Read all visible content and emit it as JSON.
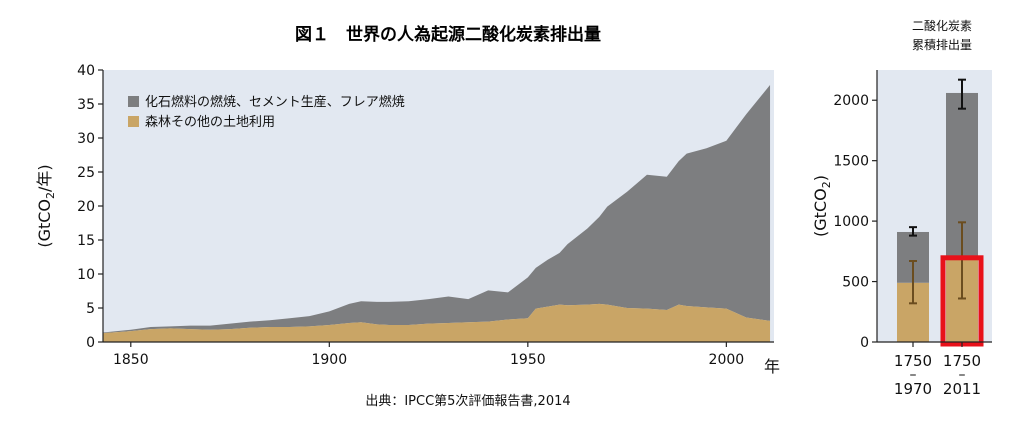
{
  "colors": {
    "fossil": "#7d7e80",
    "land": "#c9a566",
    "plot_bg": "#e2e8f1",
    "highlight": "#e8111a",
    "error_black": "#111111",
    "error_brown": "#6b4d1f"
  },
  "footer": {
    "source": "出典：IPCC第5次評価報告書,2014"
  },
  "chart_data": [
    {
      "type": "area",
      "stacked": true,
      "title": "図１　世界の人為起源二酸化炭素排出量",
      "ylabel": "(GtCO2/年)",
      "xlabel": "年",
      "xlim": [
        1843,
        2012
      ],
      "ylim": [
        0,
        40
      ],
      "xticks": [
        1850,
        1900,
        1950,
        2000
      ],
      "yticks": [
        0,
        5,
        10,
        15,
        20,
        25,
        30,
        35,
        40
      ],
      "legend_position": "top-left",
      "series": [
        {
          "name": "森林その他の土地利用",
          "color": "#c9a566",
          "x": [
            1843,
            1850,
            1855,
            1860,
            1865,
            1870,
            1875,
            1880,
            1885,
            1890,
            1895,
            1900,
            1905,
            1908,
            1912,
            1915,
            1920,
            1925,
            1930,
            1935,
            1940,
            1945,
            1950,
            1952,
            1955,
            1958,
            1960,
            1965,
            1968,
            1970,
            1975,
            1980,
            1985,
            1988,
            1990,
            1995,
            2000,
            2005,
            2011
          ],
          "values": [
            1.3,
            1.6,
            1.9,
            2.0,
            1.9,
            1.8,
            1.9,
            2.1,
            2.2,
            2.2,
            2.3,
            2.5,
            2.8,
            2.9,
            2.6,
            2.5,
            2.5,
            2.7,
            2.8,
            2.9,
            3.0,
            3.3,
            3.5,
            4.9,
            5.2,
            5.5,
            5.4,
            5.5,
            5.6,
            5.5,
            5.0,
            4.9,
            4.7,
            5.5,
            5.3,
            5.1,
            4.9,
            3.6,
            3.1
          ]
        },
        {
          "name": "化石燃料の燃焼、セメント生産、フレア燃焼",
          "color": "#7d7e80",
          "x": [
            1843,
            1850,
            1855,
            1860,
            1865,
            1870,
            1875,
            1880,
            1885,
            1890,
            1895,
            1900,
            1905,
            1908,
            1912,
            1915,
            1920,
            1925,
            1930,
            1935,
            1940,
            1945,
            1950,
            1952,
            1955,
            1958,
            1960,
            1965,
            1968,
            1970,
            1975,
            1980,
            1985,
            1988,
            1990,
            1995,
            2000,
            2005,
            2011
          ],
          "values": [
            0.1,
            0.2,
            0.3,
            0.3,
            0.5,
            0.6,
            0.8,
            0.9,
            1.0,
            1.3,
            1.5,
            2.0,
            2.8,
            3.1,
            3.3,
            3.4,
            3.5,
            3.6,
            3.9,
            3.4,
            4.6,
            4.0,
            6.0,
            6.0,
            6.9,
            7.6,
            9.0,
            11.2,
            12.8,
            14.4,
            17.1,
            19.7,
            19.6,
            21.1,
            22.4,
            23.4,
            24.7,
            29.9,
            34.7
          ]
        }
      ]
    },
    {
      "type": "bar",
      "stacked": true,
      "title": "二酸化炭素累積排出量",
      "title_lines": [
        "二酸化炭素",
        "累積排出量"
      ],
      "ylabel": "(GtCO2)",
      "categories": [
        [
          "1750",
          "–",
          "1970"
        ],
        [
          "1750",
          "–",
          "2011"
        ]
      ],
      "ylim": [
        0,
        2250
      ],
      "yticks": [
        0,
        500,
        1000,
        1500,
        2000
      ],
      "series": [
        {
          "name": "森林その他の土地利用",
          "color": "#c9a566",
          "values": [
            490,
            680
          ],
          "error_low": [
            320,
            360
          ],
          "error_high": [
            670,
            990
          ]
        },
        {
          "name": "化石燃料の燃焼、セメント生産、フレア燃焼",
          "color": "#7d7e80",
          "values": [
            420,
            1380
          ],
          "error_low": [
            880,
            1930
          ],
          "error_high": [
            950,
            2170
          ]
        }
      ],
      "highlight": {
        "bar_index": 1,
        "series": "森林その他の土地利用"
      }
    }
  ]
}
